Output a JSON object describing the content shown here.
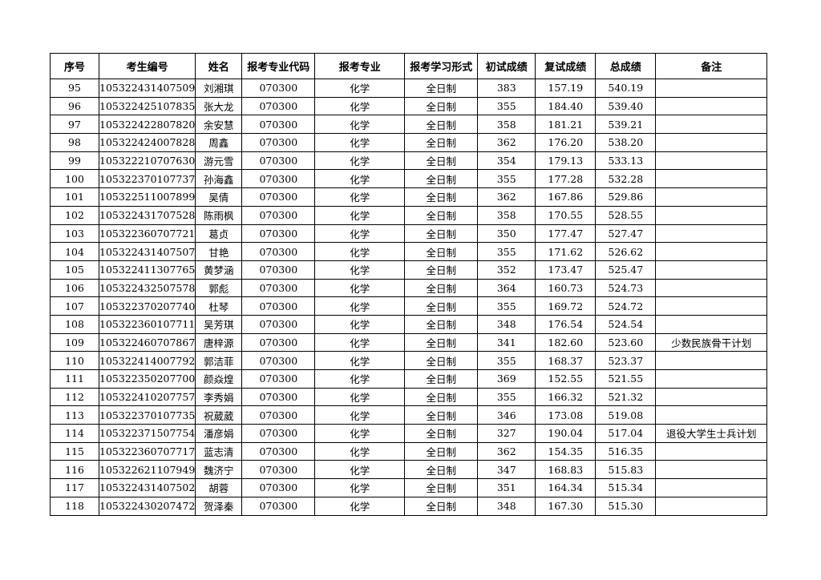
{
  "table": {
    "header": [
      "序号",
      "考生编号",
      "姓名",
      "报考专业代码",
      "报考专业",
      "报考学习形式",
      "初试成绩",
      "复试成绩",
      "总成绩",
      "备注"
    ],
    "rows": [
      [
        "95",
        "105322431407509",
        "刘湘琪",
        "070300",
        "化学",
        "全日制",
        "383",
        "157.19",
        "540.19"
      ],
      [
        "96",
        "105322425107835",
        "张大龙",
        "070300",
        "化学",
        "全日制",
        "355",
        "184.40",
        "539.40"
      ],
      [
        "97",
        "105322422807820",
        "余安慧",
        "070300",
        "化学",
        "全日制",
        "358",
        "181.21",
        "539.21"
      ],
      [
        "98",
        "105322424007828",
        "周鑫",
        "070300",
        "化学",
        "全日制",
        "362",
        "176.20",
        "538.20"
      ],
      [
        "99",
        "105322210707630",
        "游元雪",
        "070300",
        "化学",
        "全日制",
        "354",
        "179.13",
        "533.13"
      ],
      [
        "100",
        "105322370107737",
        "孙海鑫",
        "070300",
        "化学",
        "全日制",
        "355",
        "177.28",
        "532.28"
      ],
      [
        "101",
        "105322511007899",
        "吴倩",
        "070300",
        "化学",
        "全日制",
        "362",
        "167.86",
        "529.86"
      ],
      [
        "102",
        "105322431707528",
        "陈雨枫",
        "070300",
        "化学",
        "全日制",
        "358",
        "170.55",
        "528.55"
      ],
      [
        "103",
        "105322360707721",
        "葛贞",
        "070300",
        "化学",
        "全日制",
        "350",
        "177.47",
        "527.47"
      ],
      [
        "104",
        "105322431407507",
        "甘艳",
        "070300",
        "化学",
        "全日制",
        "355",
        "171.62",
        "526.62"
      ],
      [
        "105",
        "105322411307765",
        "黄梦涵",
        "070300",
        "化学",
        "全日制",
        "352",
        "173.47",
        "525.47"
      ],
      [
        "106",
        "105322432507578",
        "郭彪",
        "070300",
        "化学",
        "全日制",
        "364",
        "160.73",
        "524.73"
      ],
      [
        "107",
        "105322370207740",
        "杜琴",
        "070300",
        "化学",
        "全日制",
        "355",
        "169.72",
        "524.72"
      ],
      [
        "108",
        "105322360107711",
        "吴芳琪",
        "070300",
        "化学",
        "全日制",
        "348",
        "176.54",
        "524.54"
      ],
      [
        "109",
        "105322460707867",
        "唐梓源",
        "070300",
        "化学",
        "全日制",
        "341",
        "182.60",
        "523.60",
        "少数民族骨干计划"
      ],
      [
        "110",
        "105322414007792",
        "郭洁菲",
        "070300",
        "化学",
        "全日制",
        "355",
        "168.37",
        "523.37"
      ],
      [
        "111",
        "105322350207700",
        "颜焱煌",
        "070300",
        "化学",
        "全日制",
        "369",
        "152.55",
        "521.55"
      ],
      [
        "112",
        "105322410207757",
        "李秀娟",
        "070300",
        "化学",
        "全日制",
        "355",
        "166.32",
        "521.32"
      ],
      [
        "113",
        "105322370107735",
        "祝葳葳",
        "070300",
        "化学",
        "全日制",
        "346",
        "173.08",
        "519.08"
      ],
      [
        "114",
        "105322371507754",
        "潘彦娟",
        "070300",
        "化学",
        "全日制",
        "327",
        "190.04",
        "517.04",
        "退役大学生士兵计划"
      ],
      [
        "115",
        "105322360707717",
        "蓝志清",
        "070300",
        "化学",
        "全日制",
        "362",
        "154.35",
        "516.35"
      ],
      [
        "116",
        "105322621107949",
        "魏济宁",
        "070300",
        "化学",
        "全日制",
        "347",
        "168.83",
        "515.83"
      ],
      [
        "117",
        "105322431407502",
        "胡蓉",
        "070300",
        "化学",
        "全日制",
        "351",
        "164.34",
        "515.34"
      ],
      [
        "118",
        "105322430207472",
        "贺泽秦",
        "070300",
        "化学",
        "全日制",
        "348",
        "167.30",
        "515.30"
      ]
    ]
  }
}
